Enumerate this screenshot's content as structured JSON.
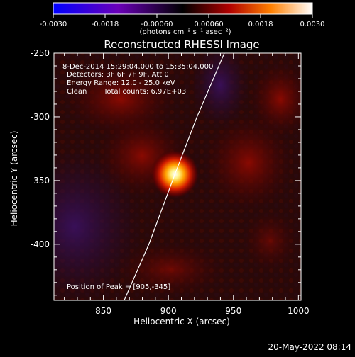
{
  "chart_data": {
    "type": "heatmap",
    "title": "Reconstructed RHESSI Image",
    "xlabel": "Heliocentric X (arcsec)",
    "ylabel": "Heliocentric Y (arcsec)",
    "xlim": [
      812,
      1002
    ],
    "ylim": [
      -444,
      -250
    ],
    "xticks": [
      850,
      900,
      950,
      1000
    ],
    "yticks": [
      -250,
      -300,
      -350,
      -400
    ],
    "colorbar": {
      "min": -0.003,
      "max": 0.003,
      "ticks": [
        "-0.0030",
        "-0.0018",
        "-0.00060",
        "0.00060",
        "0.0018",
        "0.0030"
      ],
      "unit_line": "(photons cm⁻² s⁻¹ asec⁻²)",
      "colors": [
        "#0000ff",
        "#7000b0",
        "#000000",
        "#b00000",
        "#ff8000",
        "#ffffff"
      ]
    },
    "annotations": {
      "time_range": "8-Dec-2014 15:29:04.000 to 15:35:04.000",
      "detectors": "Detectors: 3F 6F 7F 9F, Att 0",
      "energy": "Energy Range: 12.0 - 25.0 keV",
      "clean": "Clean",
      "total_counts": "Total counts: 6.97E+03",
      "peak": "Position of Peak = [905,-345]"
    },
    "peak": {
      "x": 905,
      "y": -345
    },
    "limb_curve": {
      "x": [
        866,
        885,
        905,
        922,
        943
      ],
      "y": [
        -444,
        -400,
        -345,
        -300,
        -250
      ]
    },
    "footer_timestamp": "20-May-2022 08:14"
  }
}
